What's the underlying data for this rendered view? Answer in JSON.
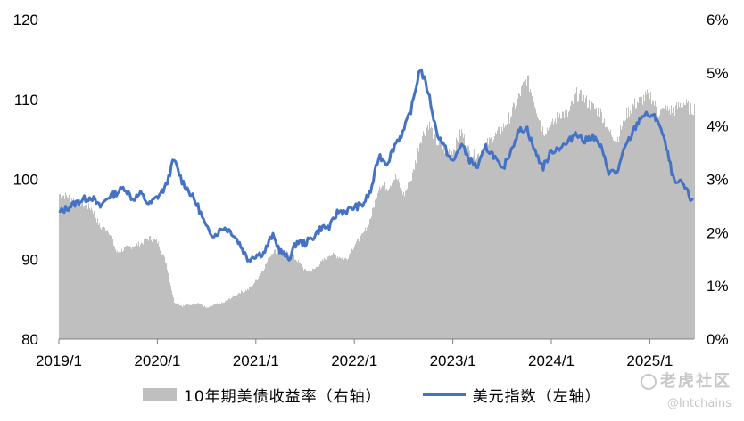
{
  "chart_data": {
    "type": "area+line",
    "title": "",
    "x_ticks": [
      "2019/1",
      "2020/1",
      "2021/1",
      "2022/1",
      "2023/1",
      "2024/1",
      "2025/1"
    ],
    "y_left": {
      "ticks": [
        "80",
        "90",
        "100",
        "110",
        "120"
      ],
      "range": [
        80,
        120
      ]
    },
    "y_right": {
      "ticks": [
        "0%",
        "1%",
        "2%",
        "3%",
        "4%",
        "5%",
        "6%"
      ],
      "range": [
        0,
        6
      ],
      "unit": "%"
    },
    "series": [
      {
        "name": "10年期美债收益率（右轴）",
        "type": "area",
        "axis": "right",
        "color": "#bfbfbf",
        "x": [
          "2019/1",
          "2019/2",
          "2019/3",
          "2019/4",
          "2019/5",
          "2019/6",
          "2019/7",
          "2019/8",
          "2019/9",
          "2019/10",
          "2019/11",
          "2019/12",
          "2020/1",
          "2020/2",
          "2020/3",
          "2020/4",
          "2020/5",
          "2020/6",
          "2020/7",
          "2020/8",
          "2020/9",
          "2020/10",
          "2020/11",
          "2020/12",
          "2021/1",
          "2021/2",
          "2021/3",
          "2021/4",
          "2021/5",
          "2021/6",
          "2021/7",
          "2021/8",
          "2021/9",
          "2021/10",
          "2021/11",
          "2021/12",
          "2022/1",
          "2022/2",
          "2022/3",
          "2022/4",
          "2022/5",
          "2022/6",
          "2022/7",
          "2022/8",
          "2022/9",
          "2022/10",
          "2022/11",
          "2022/12",
          "2023/1",
          "2023/2",
          "2023/3",
          "2023/4",
          "2023/5",
          "2023/6",
          "2023/7",
          "2023/8",
          "2023/9",
          "2023/10",
          "2023/11",
          "2023/12",
          "2024/1",
          "2024/2",
          "2024/3",
          "2024/4",
          "2024/5",
          "2024/6",
          "2024/7",
          "2024/8",
          "2024/9",
          "2024/10",
          "2024/11",
          "2024/12",
          "2025/1",
          "2025/2",
          "2025/3",
          "2025/4",
          "2025/5",
          "2025/6",
          "2025/7"
        ],
        "values": [
          2.72,
          2.68,
          2.6,
          2.52,
          2.45,
          2.1,
          2.05,
          1.62,
          1.7,
          1.75,
          1.8,
          1.9,
          1.82,
          1.45,
          0.7,
          0.62,
          0.65,
          0.68,
          0.58,
          0.65,
          0.68,
          0.78,
          0.88,
          0.93,
          1.1,
          1.35,
          1.65,
          1.65,
          1.6,
          1.48,
          1.28,
          1.3,
          1.45,
          1.6,
          1.55,
          1.5,
          1.78,
          1.95,
          2.3,
          2.9,
          2.85,
          3.05,
          2.7,
          3.05,
          3.75,
          4.05,
          3.7,
          3.55,
          3.55,
          3.9,
          3.5,
          3.45,
          3.65,
          3.8,
          3.95,
          4.2,
          4.55,
          4.9,
          4.4,
          3.9,
          4.0,
          4.25,
          4.2,
          4.6,
          4.5,
          4.35,
          4.25,
          3.9,
          3.75,
          4.2,
          4.4,
          4.5,
          4.6,
          4.25,
          4.3,
          4.3,
          4.45,
          4.3,
          4.4
        ]
      },
      {
        "name": "美元指数（左轴）",
        "type": "line",
        "axis": "left",
        "color": "#4472c4",
        "x": [
          "2019/1",
          "2019/2",
          "2019/3",
          "2019/4",
          "2019/5",
          "2019/6",
          "2019/7",
          "2019/8",
          "2019/9",
          "2019/10",
          "2019/11",
          "2019/12",
          "2020/1",
          "2020/2",
          "2020/3",
          "2020/4",
          "2020/5",
          "2020/6",
          "2020/7",
          "2020/8",
          "2020/9",
          "2020/10",
          "2020/11",
          "2020/12",
          "2021/1",
          "2021/2",
          "2021/3",
          "2021/4",
          "2021/5",
          "2021/6",
          "2021/7",
          "2021/8",
          "2021/9",
          "2021/10",
          "2021/11",
          "2021/12",
          "2022/1",
          "2022/2",
          "2022/3",
          "2022/4",
          "2022/5",
          "2022/6",
          "2022/7",
          "2022/8",
          "2022/9",
          "2022/10",
          "2022/11",
          "2022/12",
          "2023/1",
          "2023/2",
          "2023/3",
          "2023/4",
          "2023/5",
          "2023/6",
          "2023/7",
          "2023/8",
          "2023/9",
          "2023/10",
          "2023/11",
          "2023/12",
          "2024/1",
          "2024/2",
          "2024/3",
          "2024/4",
          "2024/5",
          "2024/6",
          "2024/7",
          "2024/8",
          "2024/9",
          "2024/10",
          "2024/11",
          "2024/12",
          "2025/1",
          "2025/2",
          "2025/3",
          "2025/4",
          "2025/5",
          "2025/6",
          "2025/7"
        ],
        "values": [
          95.8,
          96.4,
          97.0,
          97.5,
          97.8,
          96.5,
          97.8,
          98.3,
          99.0,
          97.5,
          98.2,
          96.8,
          97.8,
          99.0,
          102.5,
          99.8,
          98.3,
          96.5,
          93.8,
          93.0,
          94.0,
          93.5,
          92.0,
          90.0,
          90.5,
          90.8,
          93.0,
          91.0,
          90.0,
          92.2,
          92.0,
          92.8,
          94.0,
          94.0,
          96.0,
          96.0,
          96.5,
          96.8,
          98.5,
          103.0,
          102.0,
          104.5,
          106.0,
          109.0,
          114.0,
          111.0,
          106.0,
          104.0,
          102.0,
          104.5,
          102.5,
          101.5,
          104.0,
          103.0,
          101.0,
          103.5,
          106.0,
          106.5,
          103.5,
          101.5,
          103.5,
          104.0,
          104.5,
          106.0,
          104.7,
          105.5,
          104.1,
          101.0,
          100.8,
          104.0,
          106.0,
          108.0,
          108.0,
          107.5,
          104.0,
          99.5,
          99.5,
          97.5,
          98.0
        ]
      }
    ],
    "legend": "bottom"
  },
  "legend_items": {
    "area": "10年期美债收益率（右轴）",
    "line": "美元指数（左轴）"
  },
  "watermark": {
    "brand": "老虎社区",
    "handle": "@Intchains"
  }
}
